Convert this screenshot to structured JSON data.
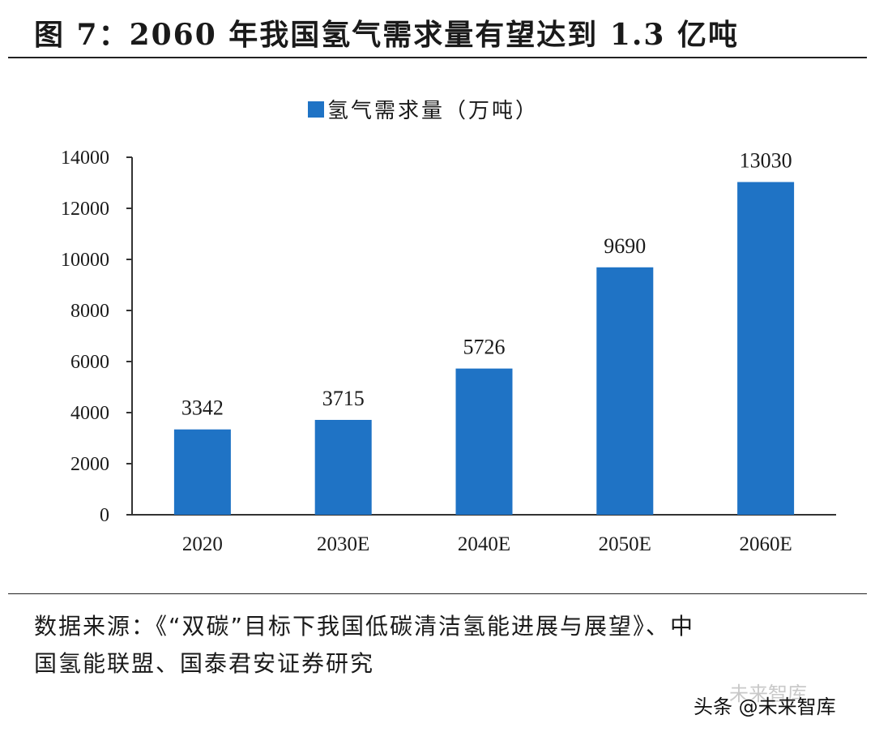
{
  "figure": {
    "title": "图 7：2060 年我国氢气需求量有望达到 1.3 亿吨",
    "source_line1": "数据来源：《“双碳”目标下我国低碳清洁氢能进展与展望》、中",
    "source_line2": "国氢能联盟、国泰君安证券研究",
    "watermark_faint": "未来智库",
    "watermark": "头条 @未来智库"
  },
  "colors": {
    "bar": "#1f73c5",
    "axis": "#333333"
  },
  "chart_data": {
    "type": "bar",
    "title": "",
    "xlabel": "",
    "ylabel": "",
    "categories": [
      "2020",
      "2030E",
      "2040E",
      "2050E",
      "2060E"
    ],
    "series": [
      {
        "name": "氢气需求量（万吨）",
        "values": [
          3342,
          3715,
          5726,
          9690,
          13030
        ]
      }
    ],
    "ylim": [
      0,
      14000
    ],
    "yticks": [
      0,
      2000,
      4000,
      6000,
      8000,
      10000,
      12000,
      14000
    ],
    "data_labels": [
      "3342",
      "3715",
      "5726",
      "9690",
      "13030"
    ],
    "legend_position": "top-center",
    "grid": false
  }
}
